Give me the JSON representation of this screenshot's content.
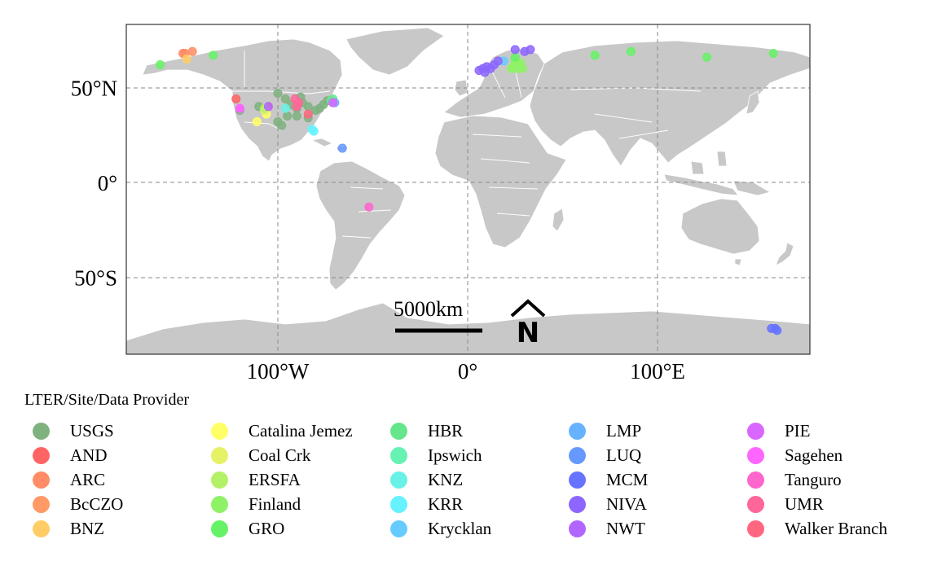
{
  "axes": {
    "y_ticks": [
      {
        "lat": 50,
        "label": "50°N"
      },
      {
        "lat": 0,
        "label": "0°"
      },
      {
        "lat": -50,
        "label": "50°S"
      }
    ],
    "x_ticks": [
      {
        "lon": -100,
        "label": "100°W"
      },
      {
        "lon": 0,
        "label": "0°"
      },
      {
        "lon": 100,
        "label": "100°E"
      }
    ],
    "lon_range": [
      -180,
      180
    ],
    "lat_range": [
      -90,
      83
    ],
    "gridlines": "dashed"
  },
  "scale_bar": {
    "label": "5000km"
  },
  "north_arrow": {
    "label": "N"
  },
  "legend": {
    "title": "LTER/Site/Data Provider",
    "placement": "bottom",
    "columns": 5
  },
  "colors": {
    "land": "#c8c8c8",
    "border": "#ffffff",
    "panel_border": "#333333",
    "grid": "#8a8a8a"
  },
  "chart_data": {
    "type": "scatter",
    "title": "",
    "xlabel": "",
    "ylabel": "",
    "series": [
      {
        "name": "USGS",
        "color": "#7fb27f",
        "points": [
          [
            -100,
            47
          ],
          [
            -96,
            44
          ],
          [
            -93,
            41
          ],
          [
            -90,
            39
          ],
          [
            -87,
            42
          ],
          [
            -84,
            40
          ],
          [
            -80,
            38
          ],
          [
            -78,
            39
          ],
          [
            -76,
            41
          ],
          [
            -74,
            43
          ],
          [
            -72,
            43
          ],
          [
            -100,
            32
          ],
          [
            -98,
            30
          ],
          [
            -95,
            35
          ],
          [
            -90,
            35
          ],
          [
            -84,
            34
          ],
          [
            -120,
            38
          ],
          [
            -110,
            40
          ],
          [
            -105,
            40
          ],
          [
            -88,
            45
          ]
        ]
      },
      {
        "name": "AND",
        "color": "#ff6464",
        "points": [
          [
            -122,
            44
          ]
        ]
      },
      {
        "name": "ARC",
        "color": "#ff8c66",
        "points": [
          [
            -149,
            68
          ],
          [
            -145,
            69
          ],
          [
            -150,
            68
          ]
        ]
      },
      {
        "name": "BcCZO",
        "color": "#ff9966",
        "points": [
          [
            -105,
            40
          ]
        ]
      },
      {
        "name": "BNZ",
        "color": "#ffcc66",
        "points": [
          [
            -148,
            65
          ]
        ]
      },
      {
        "name": "Catalina Jemez",
        "color": "#ffff66",
        "points": [
          [
            -111,
            32
          ],
          [
            -106,
            36
          ]
        ]
      },
      {
        "name": "Coal Crk",
        "color": "#e6f266",
        "points": [
          [
            -107,
            38
          ]
        ]
      },
      {
        "name": "ERSFA",
        "color": "#b3f266",
        "points": [
          [
            -107,
            39
          ]
        ]
      },
      {
        "name": "Finland",
        "color": "#8ff266",
        "points": [
          [
            24,
            61
          ],
          [
            26,
            62
          ],
          [
            28,
            63
          ],
          [
            25,
            64
          ],
          [
            23,
            60
          ],
          [
            26,
            60
          ],
          [
            29,
            60
          ]
        ]
      },
      {
        "name": "GRO",
        "color": "#66f266",
        "points": [
          [
            -162,
            62
          ],
          [
            -134,
            67
          ],
          [
            67,
            67
          ],
          [
            86,
            69
          ],
          [
            126,
            66
          ],
          [
            161,
            68
          ],
          [
            25,
            66
          ]
        ]
      },
      {
        "name": "HBR",
        "color": "#66e68c",
        "points": [
          [
            -71,
            44
          ],
          [
            -72,
            43
          ]
        ]
      },
      {
        "name": "Ipswich",
        "color": "#66f2b3",
        "points": [
          [
            -71,
            42
          ]
        ]
      },
      {
        "name": "KNZ",
        "color": "#66f2e6",
        "points": [
          [
            -96,
            39
          ]
        ]
      },
      {
        "name": "KRR",
        "color": "#66f2ff",
        "points": [
          [
            -81,
            27
          ],
          [
            -82,
            28
          ]
        ]
      },
      {
        "name": "Krycklan",
        "color": "#66ccff",
        "points": [
          [
            19,
            64
          ]
        ]
      },
      {
        "name": "LMP",
        "color": "#66b2ff",
        "points": [
          [
            -70,
            42
          ]
        ]
      },
      {
        "name": "LUQ",
        "color": "#6699ff",
        "points": [
          [
            -66,
            18
          ]
        ]
      },
      {
        "name": "MCM",
        "color": "#6673ff",
        "points": [
          [
            162,
            -77
          ],
          [
            163,
            -78
          ],
          [
            160,
            -77
          ]
        ]
      },
      {
        "name": "NIVA",
        "color": "#8c66ff",
        "points": [
          [
            6,
            59
          ],
          [
            8,
            60
          ],
          [
            10,
            61
          ],
          [
            12,
            60
          ],
          [
            14,
            62
          ],
          [
            9,
            58
          ],
          [
            16,
            64
          ],
          [
            30,
            69
          ],
          [
            33,
            70
          ],
          [
            25,
            70
          ]
        ]
      },
      {
        "name": "NWT",
        "color": "#b366ff",
        "points": [
          [
            -105,
            40
          ]
        ]
      },
      {
        "name": "PIE",
        "color": "#d966ff",
        "points": [
          [
            -71,
            42
          ],
          [
            -120,
            39
          ]
        ]
      },
      {
        "name": "Sagehen",
        "color": "#ff66ff",
        "points": [
          [
            -120,
            39
          ]
        ]
      },
      {
        "name": "Tanguro",
        "color": "#ff66cc",
        "points": [
          [
            -52,
            -13
          ]
        ]
      },
      {
        "name": "UMR",
        "color": "#ff6699",
        "points": [
          [
            -91,
            44
          ],
          [
            -89,
            42
          ],
          [
            -90,
            40
          ]
        ]
      },
      {
        "name": "Walker Branch",
        "color": "#ff6680",
        "points": [
          [
            -84,
            36
          ]
        ]
      }
    ]
  }
}
